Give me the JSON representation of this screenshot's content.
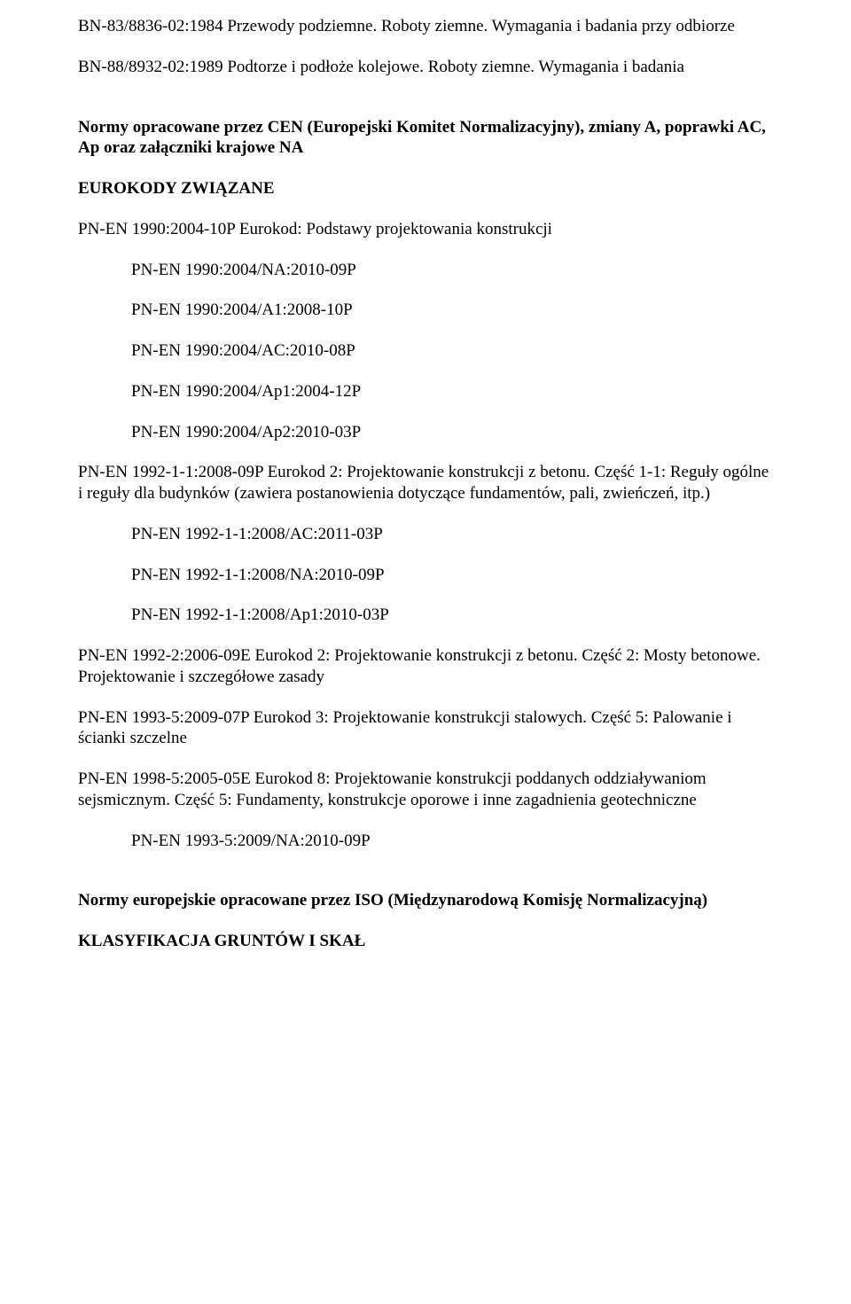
{
  "p1": "BN-83/8836-02:1984 Przewody podziemne. Roboty ziemne. Wymagania i badania przy odbiorze",
  "p2": "BN-88/8932-02:1989 Podtorze i podłoże kolejowe. Roboty ziemne. Wymagania i badania",
  "p3": "Normy opracowane przez CEN (Europejski Komitet Normalizacyjny), zmiany A, poprawki AC, Ap oraz załączniki krajowe NA",
  "p4": "EUROKODY ZWIĄZANE",
  "p5": "PN-EN 1990:2004-10P Eurokod: Podstawy projektowania konstrukcji",
  "list1": [
    "PN-EN 1990:2004/NA:2010-09P",
    "PN-EN 1990:2004/A1:2008-10P",
    "PN-EN 1990:2004/AC:2010-08P",
    "PN-EN 1990:2004/Ap1:2004-12P",
    "PN-EN 1990:2004/Ap2:2010-03P"
  ],
  "p6": "PN-EN 1992-1-1:2008-09P Eurokod 2: Projektowanie konstrukcji z betonu. Część 1-1: Reguły ogólne i reguły dla budynków (zawiera postanowienia dotyczące fundamentów, pali, zwieńczeń, itp.)",
  "list2": [
    "PN-EN 1992-1-1:2008/AC:2011-03P",
    "PN-EN 1992-1-1:2008/NA:2010-09P",
    "PN-EN 1992-1-1:2008/Ap1:2010-03P"
  ],
  "p7": "PN-EN 1992-2:2006-09E Eurokod 2: Projektowanie konstrukcji z betonu. Część 2: Mosty betonowe. Projektowanie i szczegółowe zasady",
  "p8": "PN-EN 1993-5:2009-07P Eurokod 3: Projektowanie konstrukcji stalowych. Część 5: Palowanie i ścianki szczelne",
  "p9": "PN-EN 1998-5:2005-05E Eurokod 8: Projektowanie konstrukcji poddanych oddziaływaniom sejsmicznym. Część 5: Fundamenty, konstrukcje oporowe i inne zagadnienia geotechniczne",
  "list3": [
    "PN-EN 1993-5:2009/NA:2010-09P"
  ],
  "p10": "Normy europejskie opracowane przez ISO (Międzynarodową Komisję Normalizacyjną)",
  "p11": "KLASYFIKACJA GRUNTÓW I SKAŁ"
}
